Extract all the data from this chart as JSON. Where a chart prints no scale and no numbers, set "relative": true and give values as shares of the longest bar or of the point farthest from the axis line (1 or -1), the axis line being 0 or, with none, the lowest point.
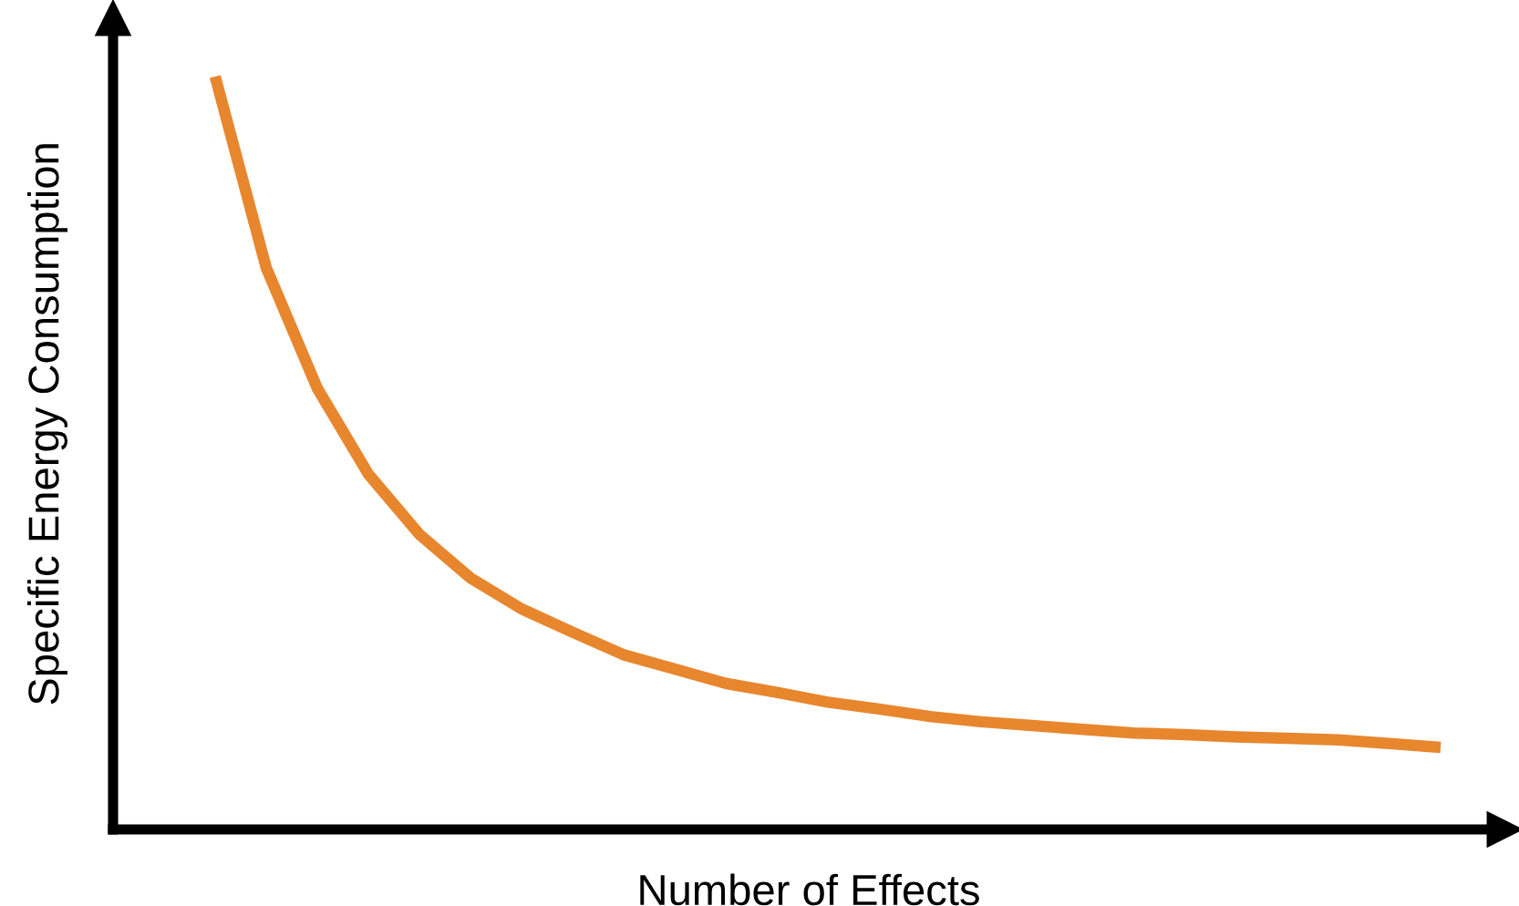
{
  "chart_data": {
    "type": "line",
    "relative": true,
    "xlabel": "Number of Effects",
    "ylabel": "Specific Energy Consumption",
    "categories": [
      null,
      null,
      null,
      null,
      null,
      null,
      null,
      null,
      null,
      null,
      null,
      null,
      null,
      null,
      null,
      null,
      null,
      null,
      null,
      null,
      null,
      null,
      null,
      null,
      null
    ],
    "series": [
      {
        "color": "#e8862e",
        "values": [
          1,
          0.746,
          0.586,
          0.472,
          0.392,
          0.334,
          0.293,
          0.262,
          0.232,
          0.213,
          0.194,
          0.182,
          0.169,
          0.16,
          0.15,
          0.143,
          0.138,
          0.133,
          0.128,
          0.126,
          0.123,
          0.121,
          0.119,
          0.114,
          0.109
        ]
      }
    ],
    "grid": false,
    "legend": false,
    "marker": "none",
    "line_style": "solid"
  }
}
